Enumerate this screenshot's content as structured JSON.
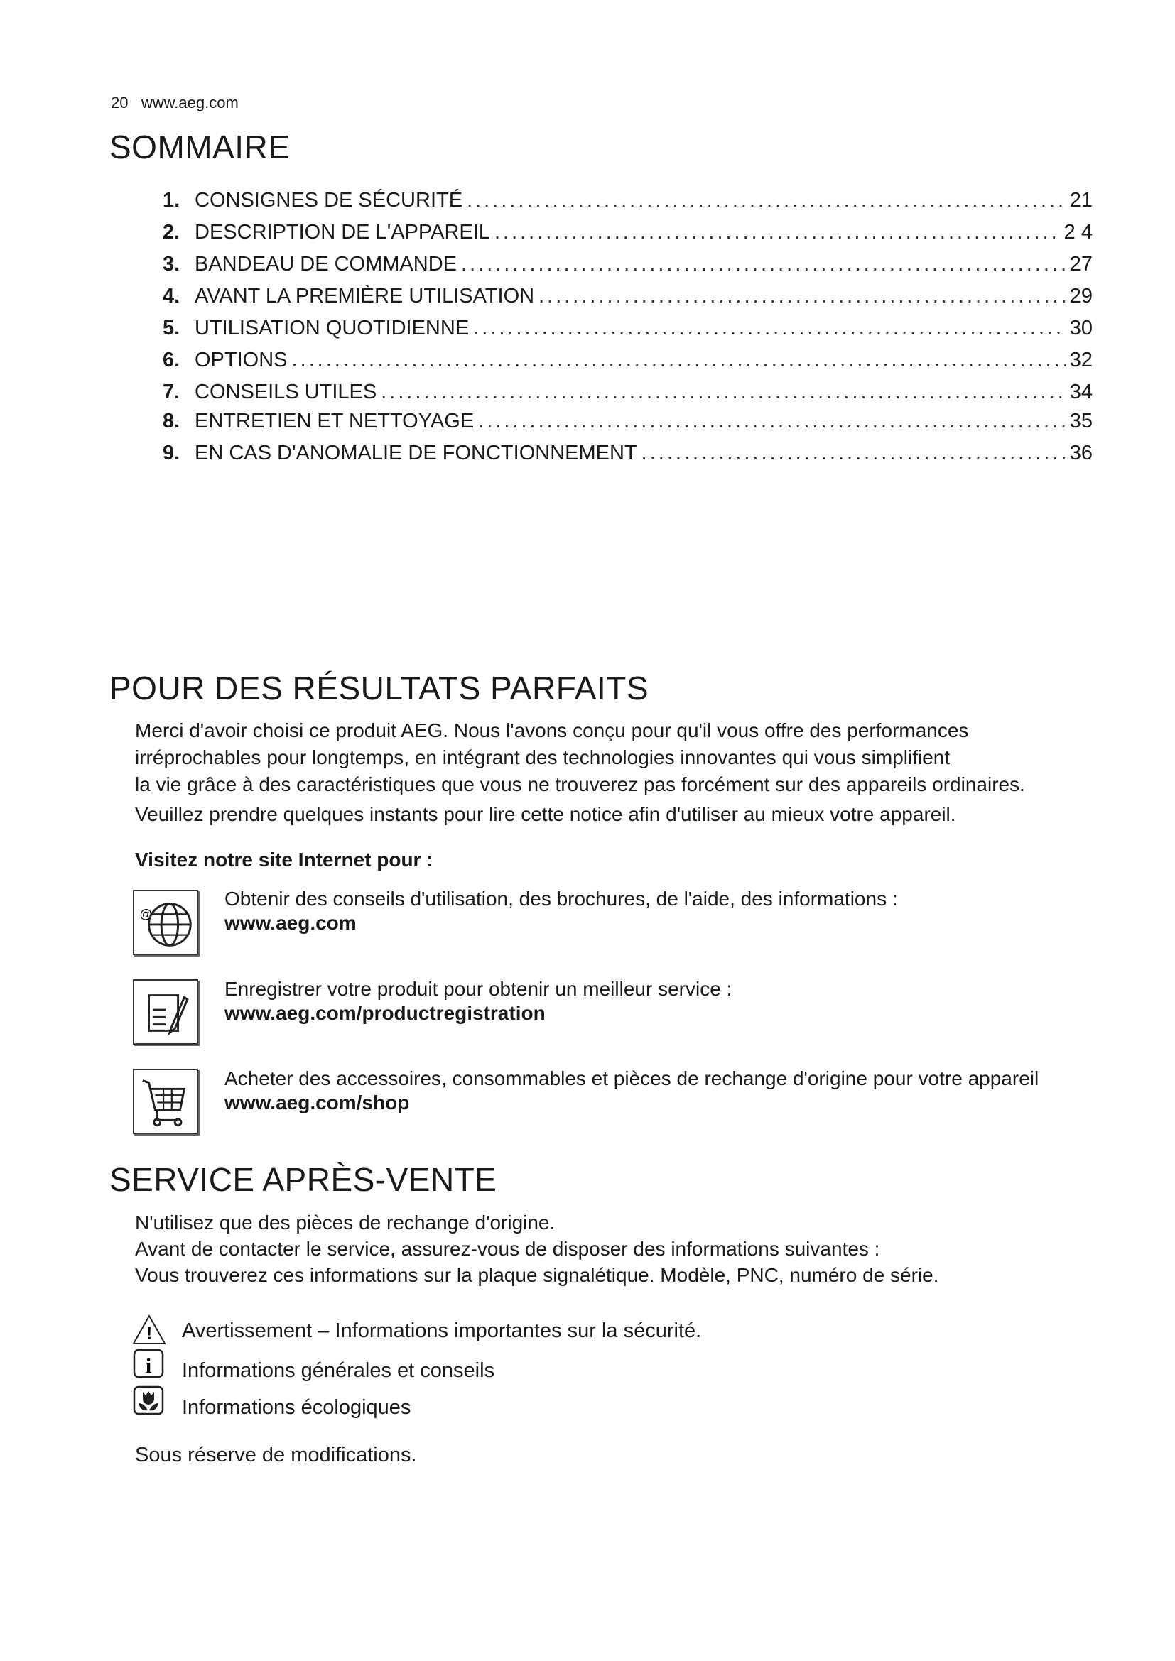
{
  "header": {
    "page_number": "20",
    "site": "www.aeg.com"
  },
  "toc": {
    "title": "SOMMAIRE",
    "items": [
      {
        "num": "1.",
        "label": "CONSIGNES DE SÉCURITÉ",
        "page": "21"
      },
      {
        "num": "2.",
        "label": "DESCRIPTION DE L'APPAREIL",
        "page": "2 4"
      },
      {
        "num": "3.",
        "label": "BANDEAU DE COMMANDE",
        "page": "27"
      },
      {
        "num": "4.",
        "label": "AVANT LA PREMIÈRE UTILISATION",
        "page": "29"
      },
      {
        "num": "5.",
        "label": "UTILISATION QUOTIDIENNE",
        "page": "30"
      },
      {
        "num": "6.",
        "label": "OPTIONS",
        "page": "32"
      },
      {
        "num": "7.",
        "label": "CONSEILS UTILES",
        "page": "34"
      },
      {
        "num": "8.",
        "label": "ENTRETIEN ET NETTOYAGE",
        "page": "35"
      },
      {
        "num": "9.",
        "label": "EN CAS D'ANOMALIE DE FONCTIONNEMENT",
        "page": "36"
      }
    ]
  },
  "results": {
    "title": "POUR DES RÉSULTATS PARFAITS",
    "lines": [
      "Merci d'avoir choisi ce produit AEG. Nous l'avons conçu pour qu'il vous offre des performances",
      "irréprochables pour longtemps, en intégrant des technologies innovantes qui vous simplifient",
      "la vie grâce à des caractéristiques que vous ne trouverez pas forcément sur des appareils ordinaires.",
      "Veuillez prendre quelques instants pour lire cette notice afin d'utiliser au mieux votre appareil."
    ],
    "visit_heading": "Visitez notre site Internet pour :",
    "visit_items": [
      {
        "icon": "globe-at-icon",
        "text": "Obtenir des conseils d'utilisation, des brochures, de l'aide, des informations :",
        "link": "www.aeg.com"
      },
      {
        "icon": "registration-form-icon",
        "text": "Enregistrer votre produit pour obtenir un meilleur service :",
        "link": "www.aeg.com/productregistration"
      },
      {
        "icon": "shopping-cart-icon",
        "text": "Acheter des accessoires, consommables et pièces de rechange d'origine pour votre appareil",
        "link": "www.aeg.com/shop"
      }
    ]
  },
  "service": {
    "title": "SERVICE APRÈS-VENTE",
    "lines": [
      "N'utilisez que des pièces de rechange d'origine.",
      "Avant de contacter le service, assurez-vous de disposer des informations suivantes :",
      "Vous trouverez ces informations sur la plaque signalétique. Modèle, PNC, numéro de série."
    ],
    "legend": [
      {
        "icon": "warning-icon",
        "text": "Avertissement – Informations importantes sur la sécurité."
      },
      {
        "icon": "info-icon",
        "text": "Informations générales et conseils"
      },
      {
        "icon": "eco-flower-icon",
        "text": "Informations écologiques"
      }
    ],
    "footer": "Sous réserve de modifications."
  }
}
